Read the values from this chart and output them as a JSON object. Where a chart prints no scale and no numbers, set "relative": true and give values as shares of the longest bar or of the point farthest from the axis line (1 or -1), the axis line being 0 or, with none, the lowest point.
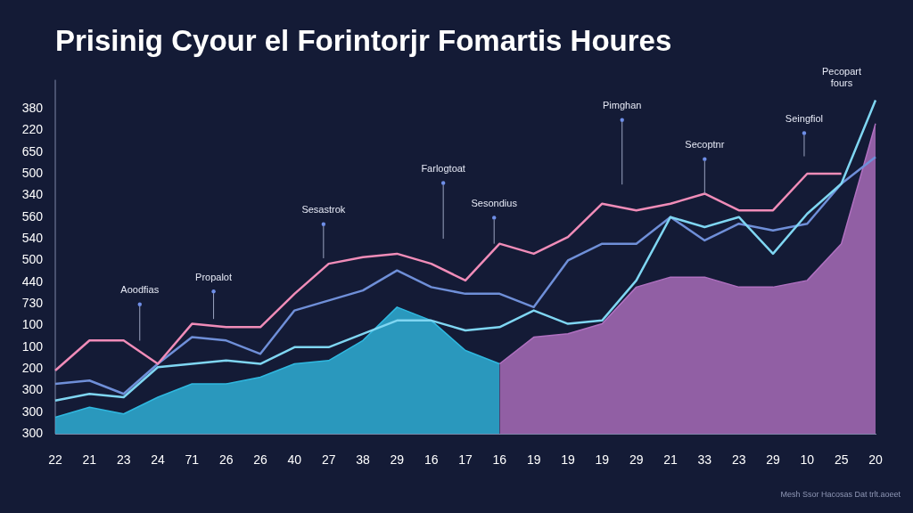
{
  "chart_data": {
    "type": "line",
    "title": "Prisinig Cyour el Forintorjr Fomartis Houres",
    "categories": [
      "22",
      "21",
      "23",
      "24",
      "71",
      "26",
      "26",
      "40",
      "27",
      "38",
      "29",
      "16",
      "17",
      "16",
      "19",
      "19",
      "19",
      "29",
      "21",
      "33",
      "23",
      "29",
      "10",
      "25",
      "20"
    ],
    "relative": true,
    "legend": false,
    "marker": "none",
    "line_style": "solid",
    "series": [
      {
        "type": "area",
        "color": "#2fb8e0",
        "values": [
          0.05,
          0.08,
          0.06,
          0.11,
          0.15,
          0.15,
          0.17,
          0.21,
          0.22,
          0.28,
          0.38,
          0.34,
          0.25,
          0.21,
          null,
          null,
          null,
          null,
          null,
          null,
          null,
          null,
          null,
          null,
          null
        ]
      },
      {
        "type": "area",
        "color": "#b070c0",
        "values": [
          null,
          null,
          null,
          null,
          null,
          null,
          null,
          null,
          null,
          null,
          null,
          null,
          null,
          0.21,
          0.29,
          0.3,
          0.33,
          0.44,
          0.47,
          0.47,
          0.44,
          0.44,
          0.46,
          0.57,
          0.93
        ]
      },
      {
        "type": "line",
        "color": "#6f8fd8",
        "values": [
          0.15,
          0.16,
          0.12,
          0.21,
          0.29,
          0.28,
          0.24,
          0.37,
          0.4,
          0.43,
          0.49,
          0.44,
          0.42,
          0.42,
          0.38,
          0.52,
          0.57,
          0.57,
          0.65,
          0.58,
          0.63,
          0.61,
          0.63,
          0.75,
          0.83
        ]
      },
      {
        "type": "line",
        "color": "#7fd6f2",
        "values": [
          0.1,
          0.12,
          0.11,
          0.2,
          0.21,
          0.22,
          0.21,
          0.26,
          0.26,
          0.3,
          0.34,
          0.34,
          0.31,
          0.32,
          0.37,
          0.33,
          0.34,
          0.46,
          0.65,
          0.62,
          0.65,
          0.54,
          0.66,
          0.75,
          1
        ]
      },
      {
        "type": "line",
        "color": "#f08cb8",
        "values": [
          0.19,
          0.28,
          0.28,
          0.21,
          0.33,
          0.32,
          0.32,
          0.42,
          0.51,
          0.53,
          0.54,
          0.51,
          0.46,
          0.57,
          0.54,
          0.59,
          0.69,
          0.67,
          0.69,
          0.72,
          0.67,
          0.67,
          0.78,
          0.78,
          null
        ]
      }
    ],
    "annotations": [
      "Aoodfias",
      "Propalot",
      "Sesastrok",
      "Farlogtoat",
      {
        "text": "Sesondius",
        "y": 0.57
      },
      "Pimghan",
      {
        "text": "Secoptnr",
        "x": "33",
        "y": 0.72
      },
      "Seingfiol",
      "Pecopart fours",
      "Mesh Ssor Hacosas Dat trlt.aoeet",
      "380",
      "220",
      "650",
      "500",
      "340",
      "560",
      "540",
      "500",
      "440",
      "730",
      "100",
      "100",
      "200",
      "300",
      "300",
      "300"
    ]
  }
}
